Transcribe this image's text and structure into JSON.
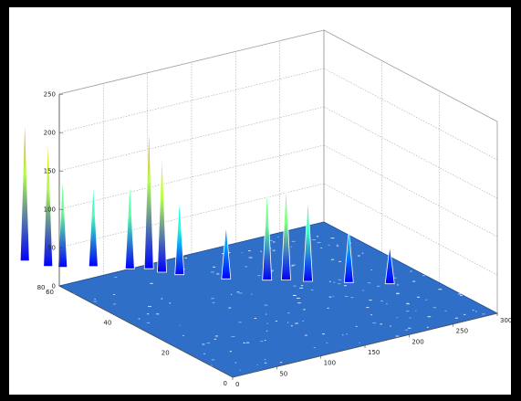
{
  "chart_data": {
    "type": "surface",
    "title": "",
    "xlabel": "",
    "ylabel": "",
    "zlabel": "",
    "grid": true,
    "legend": "none",
    "colormap": "jet",
    "xlim": [
      0,
      300
    ],
    "ylim": [
      0,
      60
    ],
    "zlim": [
      0,
      250
    ],
    "x_ticks": [
      "0",
      "50",
      "100",
      "150",
      "200",
      "250",
      "300"
    ],
    "y_ticks": [
      "0",
      "20",
      "40",
      "60",
      "80"
    ],
    "z_ticks": [
      "0",
      "50",
      "100",
      "150",
      "200",
      "250"
    ],
    "peaks": [
      {
        "x": 10,
        "y": 75,
        "z": 190
      },
      {
        "x": 20,
        "y": 70,
        "z": 170
      },
      {
        "x": 30,
        "y": 68,
        "z": 120
      },
      {
        "x": 55,
        "y": 65,
        "z": 110
      },
      {
        "x": 80,
        "y": 60,
        "z": 115
      },
      {
        "x": 95,
        "y": 58,
        "z": 190
      },
      {
        "x": 100,
        "y": 55,
        "z": 160
      },
      {
        "x": 110,
        "y": 52,
        "z": 100
      },
      {
        "x": 140,
        "y": 45,
        "z": 70
      },
      {
        "x": 170,
        "y": 40,
        "z": 120
      },
      {
        "x": 185,
        "y": 38,
        "z": 125
      },
      {
        "x": 200,
        "y": 35,
        "z": 110
      },
      {
        "x": 230,
        "y": 30,
        "z": 70
      },
      {
        "x": 260,
        "y": 25,
        "z": 50
      }
    ]
  }
}
